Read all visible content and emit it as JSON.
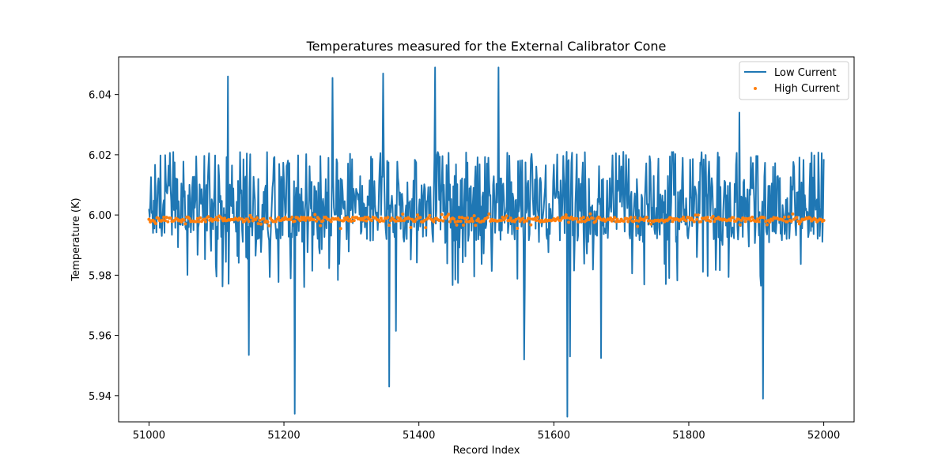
{
  "chart_data": {
    "type": "line",
    "title": "Temperatures measured for the External Calibrator Cone",
    "xlabel": "Record Index",
    "ylabel": "Temperature (K)",
    "xlim": [
      50955,
      52045
    ],
    "ylim": [
      5.9313,
      6.0525
    ],
    "xticks": [
      51000,
      51200,
      51400,
      51600,
      51800,
      52000
    ],
    "yticks": [
      5.94,
      5.96,
      5.98,
      6.0,
      6.02,
      6.04
    ],
    "ytick_labels": [
      "5.94",
      "5.96",
      "5.98",
      "6.00",
      "6.02",
      "6.04"
    ],
    "legend_position": "top-right",
    "series": [
      {
        "name": "Low Current",
        "style": "line",
        "color": "#1f77b4",
        "x_start": 51000,
        "x_end": 52000,
        "base": 6.0,
        "low_range": [
          5.976,
          6.021
        ],
        "spikes": [
          {
            "x": 51117,
            "y": 6.046
          },
          {
            "x": 51272,
            "y": 6.0455
          },
          {
            "x": 51347,
            "y": 6.047
          },
          {
            "x": 51424,
            "y": 6.049
          },
          {
            "x": 51518,
            "y": 6.049
          },
          {
            "x": 51875,
            "y": 6.034
          },
          {
            "x": 51148,
            "y": 5.9535
          },
          {
            "x": 51216,
            "y": 5.934
          },
          {
            "x": 51356,
            "y": 5.943
          },
          {
            "x": 51366,
            "y": 5.9615
          },
          {
            "x": 51556,
            "y": 5.952
          },
          {
            "x": 51620,
            "y": 5.933
          },
          {
            "x": 51624,
            "y": 5.953
          },
          {
            "x": 51670,
            "y": 5.9525
          },
          {
            "x": 51910,
            "y": 5.939
          }
        ]
      },
      {
        "name": "High Current",
        "style": "scatter",
        "color": "#ff7f0e",
        "x_start": 51000,
        "x_end": 52000,
        "center": 5.9985,
        "range": [
          5.9955,
          6.0005
        ]
      }
    ]
  }
}
